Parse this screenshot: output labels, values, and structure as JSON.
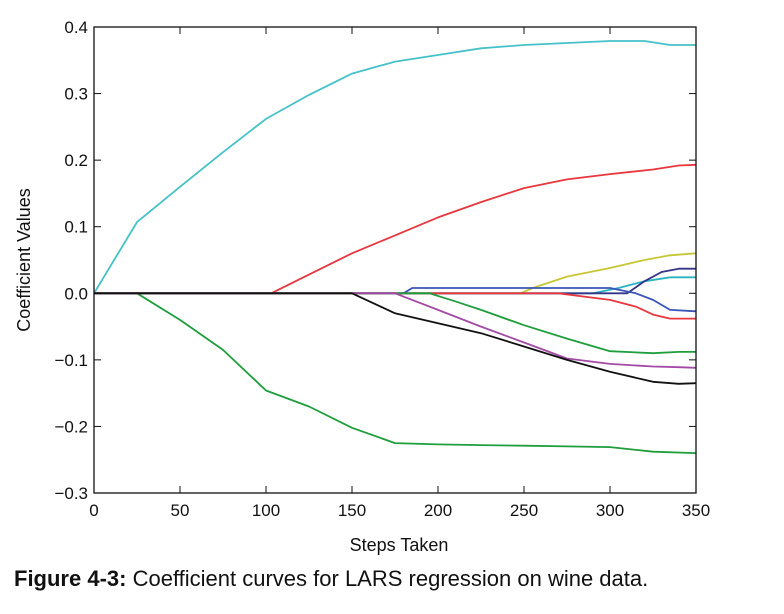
{
  "chart_data": {
    "type": "line",
    "xlabel": "Steps Taken",
    "ylabel": "Coefficient Values",
    "xlim": [
      0,
      350
    ],
    "ylim": [
      -0.3,
      0.4
    ],
    "xticks": [
      0,
      50,
      100,
      150,
      200,
      250,
      300,
      350
    ],
    "xtick_labels": [
      "0",
      "50",
      "100",
      "150",
      "200",
      "250",
      "300",
      "350"
    ],
    "yticks": [
      -0.3,
      -0.2,
      -0.1,
      0.0,
      0.1,
      0.2,
      0.3,
      0.4
    ],
    "ytick_labels": [
      "−0.3",
      "−0.2",
      "−0.1",
      "0.0",
      "0.1",
      "0.2",
      "0.3",
      "0.4"
    ],
    "grid": false,
    "series": [
      {
        "color": "#45c1c9",
        "x": [
          0,
          25,
          50,
          75,
          100,
          125,
          150,
          175,
          200,
          225,
          250,
          275,
          300,
          320,
          335,
          350
        ],
        "y": [
          0,
          0.107,
          0.16,
          0.212,
          0.262,
          0.298,
          0.33,
          0.348,
          0.358,
          0.368,
          0.373,
          0.376,
          0.379,
          0.379,
          0.373,
          0.373
        ]
      },
      {
        "color": "#e8373d",
        "x": [
          0,
          100,
          103,
          125,
          150,
          175,
          200,
          225,
          250,
          275,
          300,
          325,
          340,
          350
        ],
        "y": [
          0,
          0,
          0,
          0.028,
          0.06,
          0.087,
          0.114,
          0.137,
          0.158,
          0.171,
          0.179,
          0.186,
          0.192,
          0.193
        ]
      },
      {
        "color": "#1f9e3c",
        "x": [
          0,
          25,
          50,
          75,
          100,
          125,
          150,
          175,
          200,
          225,
          250,
          275,
          300,
          325,
          350
        ],
        "y": [
          0,
          0,
          -0.04,
          -0.085,
          -0.146,
          -0.17,
          -0.202,
          -0.225,
          -0.227,
          -0.228,
          -0.229,
          -0.23,
          -0.231,
          -0.238,
          -0.24
        ]
      },
      {
        "color": "#c7c735",
        "x": [
          0,
          248,
          255,
          275,
          300,
          320,
          335,
          350
        ],
        "y": [
          0,
          0,
          0.008,
          0.025,
          0.038,
          0.05,
          0.057,
          0.06
        ]
      },
      {
        "color": "#2ab3c2",
        "x": [
          0,
          290,
          305,
          320,
          335,
          350
        ],
        "y": [
          0,
          0,
          0.008,
          0.018,
          0.024,
          0.024
        ]
      },
      {
        "color": "#34348a",
        "x": [
          0,
          310,
          320,
          330,
          340,
          350
        ],
        "y": [
          0,
          0,
          0.018,
          0.032,
          0.037,
          0.037
        ]
      },
      {
        "color": "#3a55b6",
        "x": [
          0,
          180,
          185,
          250,
          300,
          315,
          325,
          335,
          350
        ],
        "y": [
          0,
          0,
          0.008,
          0.008,
          0.008,
          0.0,
          -0.01,
          -0.025,
          -0.027
        ]
      },
      {
        "color": "#e8373d",
        "x": [
          0,
          270,
          285,
          300,
          315,
          325,
          335,
          350
        ],
        "y": [
          0,
          0,
          -0.005,
          -0.01,
          -0.02,
          -0.032,
          -0.038,
          -0.038
        ]
      },
      {
        "color": "#1f9e3c",
        "x": [
          0,
          195,
          210,
          225,
          250,
          275,
          300,
          325,
          340,
          350
        ],
        "y": [
          0,
          0,
          -0.012,
          -0.025,
          -0.048,
          -0.068,
          -0.087,
          -0.09,
          -0.088,
          -0.088
        ]
      },
      {
        "color": "#a44aa6",
        "x": [
          0,
          175,
          200,
          225,
          250,
          275,
          300,
          325,
          340,
          350
        ],
        "y": [
          0,
          0,
          -0.025,
          -0.05,
          -0.074,
          -0.098,
          -0.106,
          -0.11,
          -0.111,
          -0.112
        ]
      },
      {
        "color": "#111111",
        "x": [
          0,
          150,
          175,
          200,
          225,
          250,
          275,
          300,
          325,
          340,
          350
        ],
        "y": [
          0,
          0,
          -0.03,
          -0.045,
          -0.06,
          -0.08,
          -0.1,
          -0.118,
          -0.133,
          -0.136,
          -0.135
        ]
      }
    ]
  },
  "caption": {
    "label": "Figure 4-3:",
    "text": "Coefficient curves for LARS regression on wine data."
  }
}
